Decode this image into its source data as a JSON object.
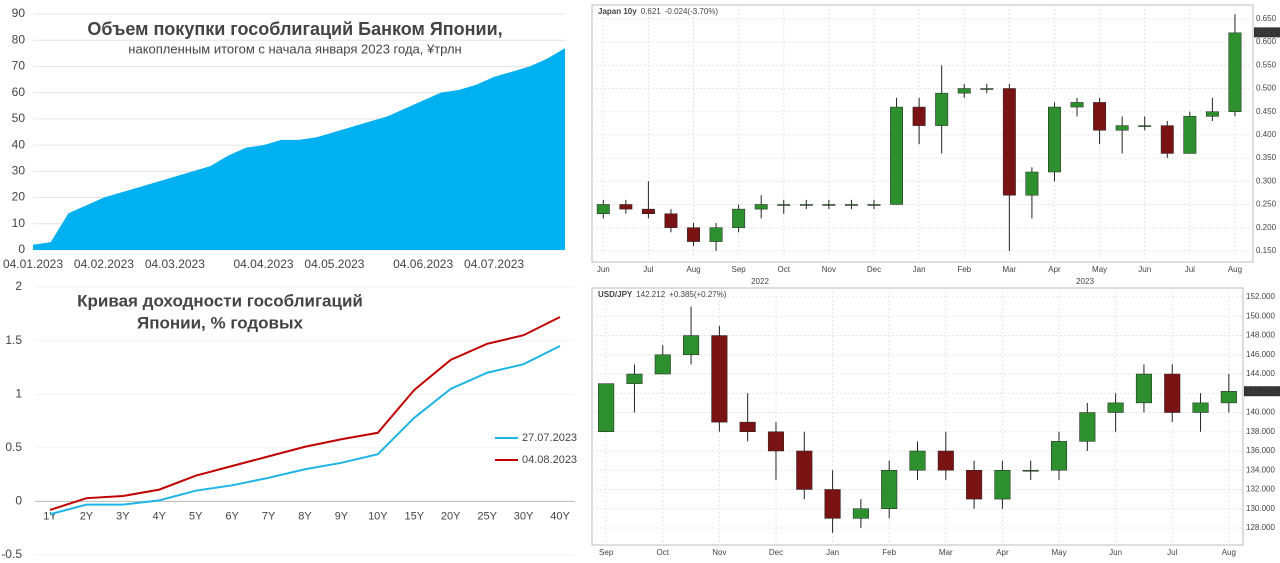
{
  "chart_data": [
    {
      "type": "area",
      "title": "Объем покупки гособлигаций Банком Японии,",
      "subtitle": "накопленным итогом с начала января 2023 года, ¥трлн",
      "categories": [
        "04.01.2023",
        null,
        null,
        null,
        "04.02.2023",
        null,
        null,
        null,
        "04.03.2023",
        null,
        null,
        null,
        null,
        "04.04.2023",
        null,
        null,
        null,
        "04.05.2023",
        null,
        null,
        null,
        null,
        "04.06.2023",
        null,
        null,
        null,
        "04.07.2023",
        null,
        null,
        null,
        null
      ],
      "values": [
        2,
        3,
        14,
        17,
        20,
        22,
        24,
        26,
        28,
        30,
        32,
        36,
        39,
        40,
        42,
        42,
        43,
        45,
        47,
        49,
        51,
        54,
        57,
        60,
        61,
        63,
        66,
        68,
        70,
        73,
        77
      ],
      "color": "#00b0f0",
      "ylim": [
        0,
        90
      ],
      "yticks": [
        0,
        10,
        20,
        30,
        40,
        50,
        60,
        70,
        80,
        90
      ]
    },
    {
      "type": "line",
      "title": [
        "Кривая доходности гособлигаций",
        "Японии, % годовых"
      ],
      "categories": [
        "1Y",
        "2Y",
        "3Y",
        "4Y",
        "5Y",
        "6Y",
        "7Y",
        "8Y",
        "9Y",
        "10Y",
        "15Y",
        "20Y",
        "25Y",
        "30Y",
        "40Y"
      ],
      "series": [
        {
          "name": "27.07.2023",
          "color": "#1fb4e6",
          "values": [
            -0.12,
            -0.03,
            -0.03,
            0.01,
            0.1,
            0.15,
            0.22,
            0.3,
            0.36,
            0.44,
            0.78,
            1.05,
            1.2,
            1.28,
            1.45
          ]
        },
        {
          "name": "04.08.2023",
          "color": "#c00000",
          "values": [
            -0.08,
            0.03,
            0.05,
            0.11,
            0.24,
            0.33,
            0.42,
            0.51,
            0.58,
            0.64,
            1.04,
            1.32,
            1.47,
            1.55,
            1.72
          ]
        }
      ],
      "ylim": [
        -0.5,
        2
      ],
      "yticks": [
        -0.5,
        0,
        0.5,
        1,
        1.5,
        2
      ]
    },
    {
      "type": "candlestick",
      "title": "Japan 10y",
      "last_value": 0.621,
      "change": "-0.024(-3.70%)",
      "up_color": "#2e8f2e",
      "down_color": "#7a1414",
      "open": [
        0.23,
        0.25,
        0.24,
        0.23,
        0.2,
        0.17,
        0.2,
        0.24,
        0.25,
        0.25,
        0.25,
        0.25,
        0.25,
        0.25,
        0.46,
        0.42,
        0.49,
        0.5,
        0.5,
        0.27,
        0.32,
        0.46,
        0.47,
        0.41,
        0.42,
        0.42,
        0.36,
        0.44,
        0.45
      ],
      "high": [
        0.26,
        0.26,
        0.3,
        0.24,
        0.21,
        0.21,
        0.25,
        0.27,
        0.26,
        0.26,
        0.26,
        0.26,
        0.26,
        0.48,
        0.48,
        0.55,
        0.51,
        0.51,
        0.51,
        0.33,
        0.47,
        0.48,
        0.48,
        0.44,
        0.44,
        0.43,
        0.45,
        0.48,
        0.66
      ],
      "low": [
        0.22,
        0.23,
        0.22,
        0.19,
        0.16,
        0.15,
        0.19,
        0.22,
        0.23,
        0.24,
        0.24,
        0.24,
        0.24,
        0.25,
        0.38,
        0.36,
        0.48,
        0.49,
        0.15,
        0.22,
        0.3,
        0.44,
        0.38,
        0.36,
        0.41,
        0.35,
        0.36,
        0.43,
        0.44
      ],
      "close": [
        0.25,
        0.24,
        0.23,
        0.2,
        0.17,
        0.2,
        0.24,
        0.25,
        0.25,
        0.25,
        0.25,
        0.25,
        0.25,
        0.46,
        0.42,
        0.49,
        0.5,
        0.5,
        0.27,
        0.32,
        0.46,
        0.47,
        0.41,
        0.42,
        0.42,
        0.36,
        0.44,
        0.45,
        0.62
      ],
      "xlim": [
        -0.5,
        28.8
      ],
      "xticks": [
        {
          "value": 0,
          "label": "Jun"
        },
        {
          "value": 2,
          "label": "Jul"
        },
        {
          "value": 4,
          "label": "Aug"
        },
        {
          "value": 6,
          "label": "Sep"
        },
        {
          "value": 8,
          "label": "Oct"
        },
        {
          "value": 10,
          "label": "Nov"
        },
        {
          "value": 12,
          "label": "Dec"
        },
        {
          "value": 14,
          "label": "Jan"
        },
        {
          "value": 16,
          "label": "Feb"
        },
        {
          "value": 18,
          "label": "Mar"
        },
        {
          "value": 20,
          "label": "Apr"
        },
        {
          "value": 22,
          "label": "May"
        },
        {
          "value": 24,
          "label": "Jun"
        },
        {
          "value": 26,
          "label": "Jul"
        },
        {
          "value": 28,
          "label": "Aug"
        }
      ],
      "years": [
        "2022",
        "2023"
      ],
      "ylim": [
        0.126,
        0.68
      ],
      "yticks": [
        {
          "value": 0.15,
          "label": "0.150"
        },
        {
          "value": 0.2,
          "label": "0.200"
        },
        {
          "value": 0.25,
          "label": "0.250"
        },
        {
          "value": 0.3,
          "label": "0.300"
        },
        {
          "value": 0.35,
          "label": "0.350"
        },
        {
          "value": 0.4,
          "label": "0.400"
        },
        {
          "value": 0.45,
          "label": "0.450"
        },
        {
          "value": 0.5,
          "label": "0.500"
        },
        {
          "value": 0.55,
          "label": "0.550"
        },
        {
          "value": 0.6,
          "label": "0.600"
        },
        {
          "value": 0.65,
          "label": "0.650"
        }
      ]
    },
    {
      "type": "candlestick",
      "title": "USD/JPY",
      "last_value": 142.212,
      "change": "+0.385(+0.27%)",
      "up_color": "#2e8f2e",
      "down_color": "#7a1414",
      "open": [
        138,
        143,
        144,
        146,
        148,
        139,
        138,
        136,
        132,
        129,
        130,
        134,
        136,
        134,
        131,
        134,
        134,
        137,
        140,
        141,
        144,
        140,
        141
      ],
      "high": [
        143,
        145,
        147,
        151,
        149,
        142,
        139,
        138,
        134,
        131,
        135,
        137,
        138,
        135,
        135,
        135,
        138,
        141,
        142,
        145,
        145,
        142,
        144
      ],
      "low": [
        138,
        140,
        144,
        145,
        138,
        137,
        133,
        131,
        127.5,
        128,
        129,
        133,
        133,
        130,
        130,
        133,
        133,
        136,
        138,
        140,
        139,
        138,
        140
      ],
      "close": [
        143,
        144,
        146,
        148,
        139,
        138,
        136,
        132,
        129,
        130,
        134,
        136,
        134,
        131,
        134,
        134,
        137,
        140,
        141,
        144,
        140,
        141,
        142.2
      ],
      "xlim": [
        -0.5,
        22.5
      ],
      "xticks": [
        {
          "value": 0,
          "label": "Sep"
        },
        {
          "value": 2,
          "label": "Oct"
        },
        {
          "value": 4,
          "label": "Nov"
        },
        {
          "value": 6,
          "label": "Dec"
        },
        {
          "value": 8,
          "label": "Jan"
        },
        {
          "value": 10,
          "label": "Feb"
        },
        {
          "value": 12,
          "label": "Mar"
        },
        {
          "value": 14,
          "label": "Apr"
        },
        {
          "value": 16,
          "label": "May"
        },
        {
          "value": 18,
          "label": "Jun"
        },
        {
          "value": 20,
          "label": "Jul"
        },
        {
          "value": 22,
          "label": "Aug"
        }
      ],
      "ylim": [
        126.23,
        152.94
      ],
      "yticks": [
        {
          "value": 128,
          "label": "128.000"
        },
        {
          "value": 130,
          "label": "130.000"
        },
        {
          "value": 132,
          "label": "132.000"
        },
        {
          "value": 134,
          "label": "134.000"
        },
        {
          "value": 136,
          "label": "136.000"
        },
        {
          "value": 138,
          "label": "138.000"
        },
        {
          "value": 140,
          "label": "140.000"
        },
        {
          "value": 142,
          "label": "142.000"
        },
        {
          "value": 144,
          "label": "144.000"
        },
        {
          "value": 146,
          "label": "146.000"
        },
        {
          "value": 148,
          "label": "148.000"
        },
        {
          "value": 150,
          "label": "150.000"
        },
        {
          "value": 152,
          "label": "152.000"
        }
      ]
    }
  ]
}
